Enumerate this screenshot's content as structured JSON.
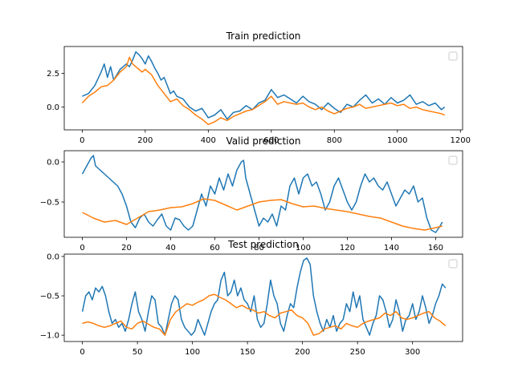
{
  "colors": {
    "series1": "#1f77b4",
    "series2": "#ff7f0e",
    "axis": "#000000",
    "legend_border": "#cccccc"
  },
  "chart_data": [
    {
      "type": "line",
      "title": "Train prediction",
      "xlim": [
        -57,
        1207
      ],
      "ylim": [
        -1.7,
        4.5
      ],
      "xticks": [
        0,
        200,
        400,
        600,
        800,
        1000,
        1200
      ],
      "xtick_labels": [
        "0",
        "200",
        "400",
        "600",
        "800",
        "1000",
        "1200"
      ],
      "yticks": [
        0.0,
        2.5
      ],
      "ytick_labels": [
        "0.0",
        "2.5"
      ],
      "legend": "top-right (empty)",
      "grid": false,
      "series": [
        {
          "color": "#1f77b4",
          "x": [
            0,
            20,
            40,
            60,
            70,
            80,
            90,
            100,
            110,
            120,
            130,
            140,
            150,
            160,
            170,
            180,
            190,
            200,
            210,
            220,
            230,
            240,
            250,
            260,
            270,
            280,
            290,
            300,
            320,
            340,
            360,
            380,
            400,
            420,
            440,
            460,
            480,
            500,
            520,
            540,
            560,
            580,
            600,
            620,
            640,
            660,
            680,
            700,
            720,
            740,
            760,
            780,
            800,
            820,
            840,
            860,
            880,
            900,
            920,
            940,
            960,
            980,
            1000,
            1020,
            1040,
            1060,
            1080,
            1100,
            1120,
            1140,
            1150
          ],
          "y": [
            0.8,
            1.0,
            1.6,
            2.6,
            3.2,
            2.2,
            3.0,
            2.0,
            2.4,
            2.8,
            3.0,
            3.2,
            3.0,
            3.5,
            4.1,
            3.9,
            3.6,
            3.2,
            3.8,
            3.4,
            2.9,
            2.5,
            2.0,
            2.2,
            1.6,
            1.0,
            1.2,
            0.8,
            0.6,
            0.0,
            -0.3,
            -0.1,
            -0.8,
            -0.6,
            -0.2,
            -0.9,
            -0.4,
            -0.3,
            0.1,
            -0.2,
            0.3,
            0.5,
            1.3,
            0.7,
            0.9,
            0.6,
            0.3,
            0.8,
            0.4,
            0.2,
            -0.2,
            0.3,
            -0.1,
            -0.4,
            0.2,
            0.0,
            0.5,
            0.9,
            0.3,
            0.6,
            0.2,
            0.7,
            0.3,
            0.5,
            0.9,
            0.2,
            0.4,
            0.1,
            0.3,
            -0.2,
            0.0
          ]
        },
        {
          "color": "#ff7f0e",
          "x": [
            0,
            20,
            40,
            60,
            80,
            100,
            120,
            140,
            150,
            160,
            170,
            180,
            190,
            200,
            220,
            240,
            260,
            280,
            300,
            320,
            340,
            360,
            380,
            400,
            420,
            440,
            460,
            480,
            500,
            520,
            540,
            560,
            580,
            600,
            620,
            640,
            660,
            680,
            700,
            720,
            740,
            760,
            780,
            800,
            820,
            840,
            860,
            880,
            900,
            920,
            940,
            960,
            980,
            1000,
            1020,
            1040,
            1060,
            1080,
            1100,
            1120,
            1140,
            1150
          ],
          "y": [
            0.3,
            0.8,
            1.1,
            1.5,
            1.6,
            2.0,
            2.6,
            3.0,
            3.7,
            3.2,
            3.0,
            2.8,
            2.6,
            2.8,
            2.4,
            1.6,
            1.0,
            0.4,
            0.6,
            0.1,
            -0.2,
            -0.6,
            -0.9,
            -1.3,
            -1.1,
            -0.8,
            -1.0,
            -0.7,
            -0.5,
            -0.3,
            -0.2,
            0.1,
            0.4,
            0.8,
            0.2,
            0.4,
            0.3,
            0.2,
            0.3,
            0.0,
            -0.2,
            0.0,
            -0.3,
            -0.5,
            -0.3,
            -0.1,
            0.0,
            0.2,
            -0.1,
            0.0,
            0.1,
            0.2,
            0.3,
            0.1,
            0.2,
            -0.1,
            0.0,
            -0.2,
            -0.3,
            -0.4,
            -0.5,
            -0.6
          ]
        }
      ]
    },
    {
      "type": "line",
      "title": "Valid prediction",
      "xlim": [
        -8.2,
        172.2
      ],
      "ylim": [
        -0.94,
        0.14
      ],
      "xticks": [
        0,
        20,
        40,
        60,
        80,
        100,
        120,
        140,
        160
      ],
      "xtick_labels": [
        "0",
        "20",
        "40",
        "60",
        "80",
        "100",
        "120",
        "140",
        "160"
      ],
      "yticks": [
        0.0,
        -0.5
      ],
      "ytick_labels": [
        "0.0",
        "−0.5"
      ],
      "legend": "top-right (empty)",
      "grid": false,
      "series": [
        {
          "color": "#1f77b4",
          "x": [
            0,
            2,
            4,
            5,
            6,
            8,
            10,
            12,
            14,
            16,
            18,
            20,
            22,
            24,
            26,
            28,
            30,
            32,
            34,
            36,
            38,
            40,
            42,
            44,
            46,
            48,
            50,
            52,
            54,
            56,
            58,
            60,
            62,
            64,
            66,
            68,
            70,
            72,
            73,
            74,
            76,
            78,
            80,
            82,
            84,
            86,
            88,
            90,
            92,
            94,
            96,
            98,
            100,
            102,
            104,
            106,
            108,
            110,
            112,
            114,
            116,
            118,
            120,
            122,
            124,
            126,
            128,
            130,
            132,
            134,
            136,
            138,
            140,
            142,
            144,
            146,
            148,
            150,
            152,
            154,
            156,
            158,
            160,
            162,
            163
          ],
          "y": [
            -0.15,
            -0.05,
            0.05,
            0.08,
            -0.05,
            -0.1,
            -0.15,
            -0.2,
            -0.25,
            -0.3,
            -0.4,
            -0.55,
            -0.75,
            -0.82,
            -0.7,
            -0.65,
            -0.75,
            -0.8,
            -0.72,
            -0.65,
            -0.8,
            -0.85,
            -0.7,
            -0.72,
            -0.8,
            -0.85,
            -0.8,
            -0.6,
            -0.4,
            -0.55,
            -0.3,
            -0.4,
            -0.2,
            -0.35,
            -0.15,
            -0.3,
            -0.1,
            0.0,
            0.02,
            -0.2,
            -0.4,
            -0.6,
            -0.8,
            -0.7,
            -0.75,
            -0.65,
            -0.8,
            -0.55,
            -0.6,
            -0.3,
            -0.2,
            -0.4,
            -0.2,
            -0.15,
            -0.3,
            -0.25,
            -0.4,
            -0.6,
            -0.5,
            -0.3,
            -0.2,
            -0.35,
            -0.5,
            -0.6,
            -0.5,
            -0.3,
            -0.15,
            -0.25,
            -0.2,
            -0.3,
            -0.35,
            -0.25,
            -0.4,
            -0.55,
            -0.45,
            -0.35,
            -0.4,
            -0.3,
            -0.5,
            -0.45,
            -0.7,
            -0.85,
            -0.88,
            -0.8,
            -0.75
          ]
        },
        {
          "color": "#ff7f0e",
          "x": [
            0,
            5,
            10,
            15,
            20,
            25,
            30,
            35,
            40,
            45,
            50,
            55,
            60,
            65,
            70,
            75,
            80,
            85,
            90,
            95,
            100,
            105,
            110,
            115,
            120,
            125,
            130,
            135,
            140,
            145,
            150,
            155,
            160,
            163
          ],
          "y": [
            -0.63,
            -0.7,
            -0.75,
            -0.73,
            -0.78,
            -0.7,
            -0.62,
            -0.6,
            -0.57,
            -0.56,
            -0.52,
            -0.46,
            -0.48,
            -0.54,
            -0.6,
            -0.55,
            -0.5,
            -0.48,
            -0.47,
            -0.52,
            -0.56,
            -0.55,
            -0.58,
            -0.6,
            -0.62,
            -0.65,
            -0.68,
            -0.7,
            -0.75,
            -0.8,
            -0.83,
            -0.85,
            -0.82,
            -0.8
          ]
        }
      ]
    },
    {
      "type": "line",
      "title": "Test prediction",
      "xlim": [
        -16.5,
        345.5
      ],
      "ylim": [
        -1.08,
        0.03
      ],
      "xticks": [
        0,
        50,
        100,
        150,
        200,
        250,
        300
      ],
      "xtick_labels": [
        "0",
        "50",
        "100",
        "150",
        "200",
        "250",
        "300"
      ],
      "yticks": [
        0.0,
        -0.5,
        -1.0
      ],
      "ytick_labels": [
        "0.0",
        "−0.5",
        "−1.0"
      ],
      "legend": "top-right (empty)",
      "grid": false,
      "series": [
        {
          "color": "#1f77b4",
          "x": [
            0,
            3,
            6,
            9,
            12,
            15,
            18,
            21,
            24,
            27,
            30,
            33,
            36,
            39,
            42,
            45,
            48,
            51,
            54,
            57,
            60,
            63,
            66,
            69,
            72,
            75,
            78,
            81,
            84,
            87,
            90,
            93,
            96,
            99,
            102,
            105,
            108,
            111,
            114,
            117,
            120,
            123,
            126,
            129,
            132,
            135,
            138,
            141,
            144,
            147,
            150,
            153,
            156,
            159,
            162,
            165,
            168,
            171,
            174,
            177,
            180,
            183,
            186,
            189,
            192,
            195,
            198,
            201,
            204,
            207,
            210,
            213,
            216,
            219,
            222,
            225,
            228,
            231,
            234,
            237,
            240,
            243,
            246,
            249,
            252,
            255,
            258,
            261,
            264,
            267,
            270,
            273,
            276,
            279,
            282,
            285,
            288,
            291,
            294,
            297,
            300,
            303,
            306,
            309,
            312,
            315,
            318,
            321,
            324,
            327,
            330
          ],
          "y": [
            -0.7,
            -0.5,
            -0.45,
            -0.55,
            -0.4,
            -0.45,
            -0.38,
            -0.5,
            -0.7,
            -0.85,
            -0.8,
            -0.9,
            -0.85,
            -0.95,
            -0.8,
            -0.6,
            -0.45,
            -0.7,
            -0.8,
            -0.95,
            -0.7,
            -0.5,
            -0.55,
            -0.85,
            -0.9,
            -1.0,
            -0.8,
            -0.6,
            -0.5,
            -0.55,
            -0.8,
            -0.9,
            -0.95,
            -1.0,
            -0.95,
            -0.8,
            -0.9,
            -1.0,
            -0.85,
            -0.7,
            -0.6,
            -0.55,
            -0.3,
            -0.2,
            -0.5,
            -0.45,
            -0.3,
            -0.5,
            -0.4,
            -0.55,
            -0.6,
            -0.7,
            -0.5,
            -0.8,
            -0.9,
            -0.85,
            -0.6,
            -0.3,
            -0.5,
            -0.6,
            -0.85,
            -0.95,
            -0.75,
            -0.6,
            -0.65,
            -0.4,
            -0.2,
            -0.05,
            -0.02,
            -0.1,
            -0.5,
            -0.7,
            -0.85,
            -0.95,
            -0.8,
            -0.9,
            -0.75,
            -0.95,
            -0.85,
            -0.8,
            -0.6,
            -0.7,
            -0.45,
            -0.65,
            -0.5,
            -0.8,
            -0.9,
            -1.0,
            -0.85,
            -0.75,
            -0.5,
            -0.55,
            -0.7,
            -0.9,
            -0.8,
            -0.55,
            -0.7,
            -0.95,
            -0.8,
            -0.75,
            -0.6,
            -0.8,
            -0.7,
            -0.5,
            -0.65,
            -0.85,
            -0.75,
            -0.6,
            -0.5,
            -0.35,
            -0.4
          ]
        },
        {
          "color": "#ff7f0e",
          "x": [
            0,
            5,
            10,
            15,
            20,
            25,
            30,
            35,
            40,
            45,
            50,
            55,
            60,
            65,
            70,
            75,
            80,
            85,
            90,
            95,
            100,
            105,
            110,
            115,
            120,
            125,
            130,
            135,
            140,
            145,
            150,
            155,
            160,
            165,
            170,
            175,
            180,
            185,
            190,
            195,
            200,
            205,
            210,
            215,
            220,
            225,
            230,
            235,
            240,
            245,
            250,
            255,
            260,
            265,
            270,
            275,
            280,
            285,
            290,
            295,
            300,
            305,
            310,
            315,
            320,
            325,
            330
          ],
          "y": [
            -0.85,
            -0.83,
            -0.85,
            -0.88,
            -0.9,
            -0.88,
            -0.85,
            -0.82,
            -0.9,
            -0.92,
            -0.85,
            -0.82,
            -0.86,
            -0.9,
            -0.92,
            -1.0,
            -0.8,
            -0.7,
            -0.65,
            -0.6,
            -0.62,
            -0.58,
            -0.55,
            -0.5,
            -0.48,
            -0.52,
            -0.55,
            -0.6,
            -0.65,
            -0.62,
            -0.66,
            -0.68,
            -0.72,
            -0.7,
            -0.75,
            -0.78,
            -0.72,
            -0.7,
            -0.68,
            -0.75,
            -0.78,
            -0.85,
            -1.0,
            -0.98,
            -0.92,
            -0.9,
            -0.88,
            -0.92,
            -0.85,
            -0.88,
            -0.9,
            -0.85,
            -0.82,
            -0.8,
            -0.78,
            -0.72,
            -0.75,
            -0.7,
            -0.78,
            -0.8,
            -0.78,
            -0.75,
            -0.72,
            -0.7,
            -0.78,
            -0.82,
            -0.88
          ]
        }
      ]
    }
  ]
}
